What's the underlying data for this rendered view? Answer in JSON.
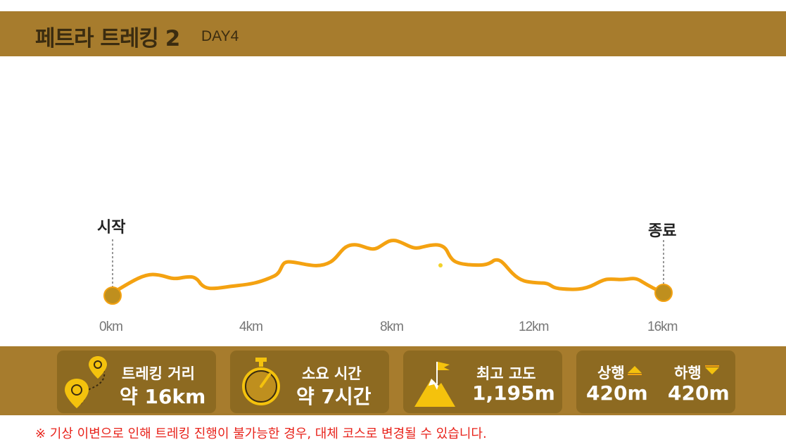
{
  "header": {
    "title": "페트라 트레킹 2",
    "subtitle": "DAY4"
  },
  "profile": {
    "start_label": "시작",
    "end_label": "종료",
    "distance_ticks": [
      "0km",
      "4km",
      "8km",
      "12km",
      "16km"
    ],
    "line_color": "#f4a211",
    "marker_color": "#bf8f1e"
  },
  "stats": {
    "distance": {
      "label": "트레킹 거리",
      "value": "약 16km",
      "icon": "route-pin-icon"
    },
    "duration": {
      "label": "소요 시간",
      "value": "약 7시간",
      "icon": "stopwatch-icon"
    },
    "altitude": {
      "label": "최고 고도",
      "value": "1,195m",
      "icon": "mountain-flag-icon"
    },
    "ascent": {
      "label": "상행",
      "value": "420m",
      "icon": "up-arrow-icon"
    },
    "descent": {
      "label": "하행",
      "value": "420m",
      "icon": "down-arrow-icon"
    }
  },
  "notice": "※ 기상 이변으로 인해 트레킹 진행이 불가능한 경우, 대체 코스로 변경될 수 있습니다."
}
